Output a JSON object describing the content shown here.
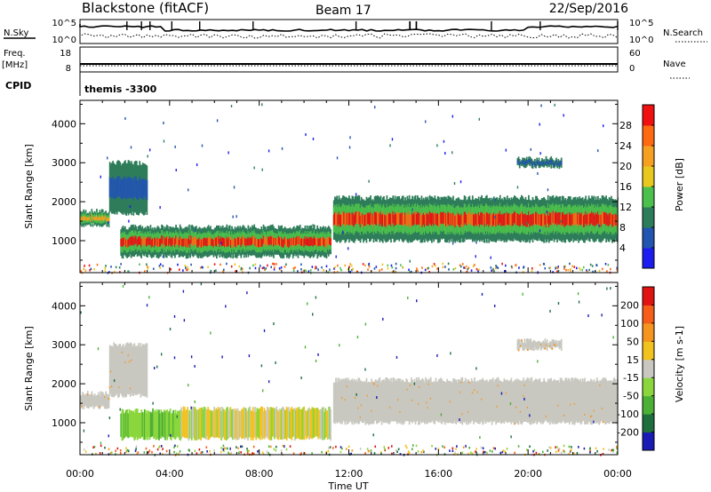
{
  "header": {
    "station": "Blackstone (fitACF)",
    "beam": "Beam 17",
    "date": "22/Sep/2016"
  },
  "sky_panel": {
    "left_label": "N.Sky",
    "right_label": "N.Search",
    "left_ticks": [
      "10^5",
      "10^0"
    ],
    "right_ticks": [
      "10^5",
      "10^0"
    ]
  },
  "freq_panel": {
    "left_label": "Freq.",
    "left_unit": "[MHz]",
    "right_label": "Nave",
    "left_ticks": [
      "18",
      "8"
    ],
    "right_ticks": [
      "60",
      "0"
    ]
  },
  "cpid_panel": {
    "label": "CPID",
    "value": "themis -3300"
  },
  "x_axis": {
    "label": "Time UT",
    "ticks": [
      "00:00",
      "04:00",
      "08:00",
      "12:00",
      "16:00",
      "20:00",
      "00:00"
    ]
  },
  "chart_data": [
    {
      "type": "heatmap",
      "name": "power",
      "xlabel": "Time UT",
      "ylabel": "Slant Range [km]",
      "x_range_hours": [
        0,
        24
      ],
      "ylim": [
        180,
        4600
      ],
      "y_ticks": [
        1000,
        2000,
        3000,
        4000
      ],
      "colorbar": {
        "label": "Power [dB]",
        "ticks": [
          "4",
          "8",
          "12",
          "16",
          "20",
          "24",
          "28"
        ],
        "colors": [
          "#1c1cf0",
          "#2255b0",
          "#2e7d5a",
          "#4cc04c",
          "#e8c81e",
          "#f5a020",
          "#ff6a10",
          "#f01010"
        ]
      },
      "regions": [
        {
          "t0": 0.0,
          "t1": 1.3,
          "r0": 1400,
          "r1": 1750,
          "level": "mid"
        },
        {
          "t0": 1.3,
          "t1": 3.0,
          "r0": 1700,
          "r1": 3000,
          "level": "low"
        },
        {
          "t0": 1.8,
          "t1": 11.2,
          "r0": 600,
          "r1": 1350,
          "level": "high"
        },
        {
          "t0": 11.3,
          "t1": 24.0,
          "r0": 1000,
          "r1": 2100,
          "level": "high"
        },
        {
          "t0": 19.5,
          "t1": 21.5,
          "r0": 2900,
          "r1": 3100,
          "level": "low"
        }
      ]
    },
    {
      "type": "heatmap",
      "name": "velocity",
      "xlabel": "Time UT",
      "ylabel": "Slant Range [km]",
      "x_range_hours": [
        0,
        24
      ],
      "ylim": [
        180,
        4600
      ],
      "y_ticks": [
        1000,
        2000,
        3000,
        4000
      ],
      "colorbar": {
        "label": "Velocity [m s-1]",
        "ticks": [
          "200",
          "100",
          "50",
          "15",
          "-15",
          "-50",
          "-100",
          "-200"
        ],
        "colors": [
          "#1a1ab4",
          "#1f6e3e",
          "#4caf36",
          "#8ad63c",
          "#c8c8c0",
          "#f2c21e",
          "#f59520",
          "#f55d18",
          "#e11212"
        ]
      },
      "regions": [
        {
          "t0": 0.0,
          "t1": 1.3,
          "r0": 1400,
          "r1": 1750,
          "level": "grey"
        },
        {
          "t0": 1.3,
          "t1": 3.0,
          "r0": 1700,
          "r1": 3000,
          "level": "grey"
        },
        {
          "t0": 1.8,
          "t1": 4.5,
          "r0": 600,
          "r1": 1300,
          "level": "green"
        },
        {
          "t0": 4.5,
          "t1": 11.2,
          "r0": 600,
          "r1": 1350,
          "level": "mixed"
        },
        {
          "t0": 11.3,
          "t1": 24.0,
          "r0": 1000,
          "r1": 2100,
          "level": "grey"
        },
        {
          "t0": 19.5,
          "t1": 21.5,
          "r0": 2900,
          "r1": 3100,
          "level": "grey"
        }
      ]
    }
  ]
}
